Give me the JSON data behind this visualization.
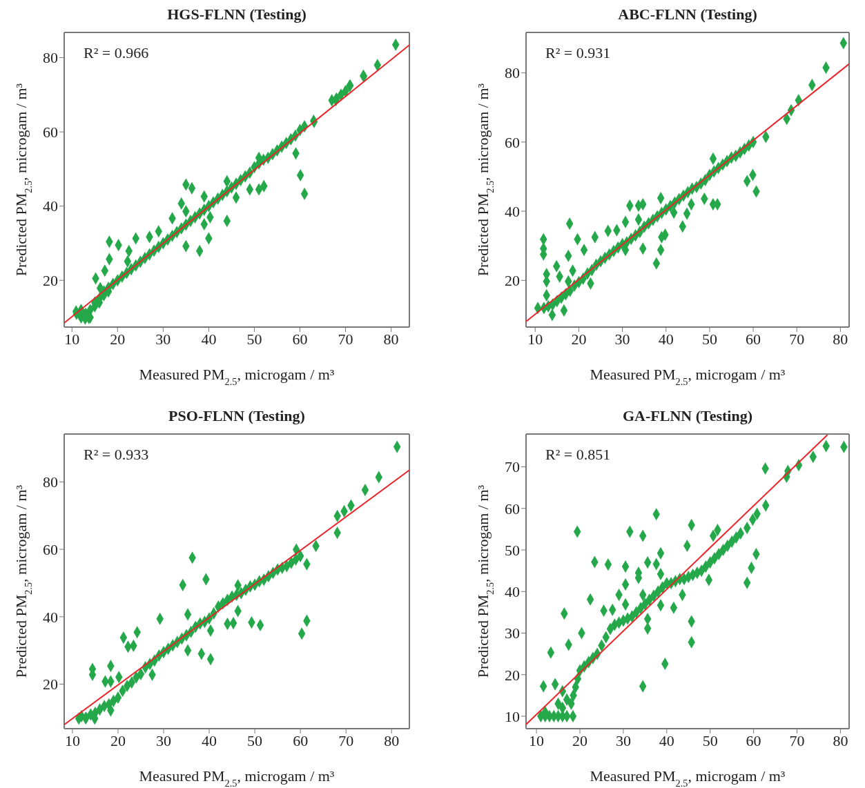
{
  "chart_data": [
    {
      "type": "scatter",
      "title": "HGS-FLNN (Testing)",
      "xlabel": "Measured PM$_{2.5}$, microgam / m³",
      "ylabel": "Predicted PM$_{2.5}$, microgam / m³",
      "annotations": [
        "R² = 0.966"
      ],
      "xlim": [
        8.3,
        84
      ],
      "ylim": [
        7.4,
        86.8
      ],
      "xticks": [
        10,
        20,
        30,
        40,
        50,
        60,
        70,
        80
      ],
      "yticks": [
        20,
        40,
        60,
        80
      ],
      "series": [
        {
          "marker": "diamond",
          "color": "#24a84a",
          "x": [
            11,
            12,
            12,
            14,
            13,
            14,
            15,
            15,
            16,
            16,
            17,
            17,
            18,
            18,
            19,
            20,
            21,
            22,
            23,
            24,
            25,
            26,
            27,
            28,
            29,
            30,
            31,
            32,
            33,
            34,
            35,
            36,
            37,
            38,
            39,
            40,
            41,
            42,
            43,
            44,
            45,
            46,
            47,
            48,
            49,
            50,
            51,
            52,
            53,
            54,
            55,
            56,
            57,
            58,
            59,
            60,
            61,
            63,
            67,
            68,
            69,
            70,
            71,
            74,
            77,
            81,
            18.2,
            18.2,
            15.2,
            17.2,
            16.2,
            20.2,
            22.5,
            24,
            22.2,
            27,
            29,
            32,
            35,
            36.3,
            34,
            35,
            39,
            35,
            38,
            40,
            39,
            40.3,
            44,
            46,
            49,
            51,
            52.1,
            59.1,
            60.1,
            61,
            63.1,
            73.9,
            70.9,
            67.9,
            51,
            44,
            10.9,
            12.9,
            13.7
          ],
          "values": [
            11,
            12,
            10,
            10,
            11,
            12,
            13,
            14,
            14,
            15,
            16,
            17,
            18,
            17,
            19,
            20,
            21,
            22,
            23,
            24,
            25,
            26,
            27,
            28,
            29,
            30,
            31,
            32,
            33,
            34,
            35,
            36,
            37,
            38,
            39,
            40,
            41,
            42,
            43,
            44,
            45,
            46,
            47,
            48,
            49,
            50.5,
            51.5,
            52.5,
            53,
            54,
            55,
            56,
            57,
            58,
            59,
            60.5,
            61.5,
            63,
            68.5,
            69,
            70,
            71,
            72.5,
            75,
            78,
            83.5,
            30.4,
            25.7,
            20.5,
            22.6,
            17.9,
            29.5,
            27.9,
            31.3,
            25.1,
            31.7,
            33.2,
            36.7,
            45.8,
            44.8,
            40.7,
            38.6,
            42.6,
            29.2,
            27.9,
            31.3,
            35.1,
            37,
            36,
            42.3,
            44.5,
            44.5,
            45.4,
            54.2,
            48.3,
            43.3,
            62.7,
            75.1,
            72.4,
            68.6,
            53,
            46.7,
            11.6,
            9.7,
            9.9
          ]
        },
        {
          "type": "line",
          "marker": "none",
          "color": "#e8262b",
          "x": [
            8.3,
            84
          ],
          "values": [
            8.5,
            83.4
          ]
        }
      ]
    },
    {
      "type": "scatter",
      "title": "ABC-FLNN (Testing)",
      "xlabel": "Measured PM$_{2.5}$, microgam / m³",
      "ylabel": "Predicted PM$_{2.5}$, microgam / m³",
      "annotations": [
        "R² = 0.931"
      ],
      "xlim": [
        7.9,
        82
      ],
      "ylim": [
        6.5,
        91.7
      ],
      "xticks": [
        10,
        20,
        30,
        40,
        50,
        60,
        70,
        80
      ],
      "yticks": [
        20,
        40,
        60,
        80
      ],
      "series": [
        {
          "marker": "diamond",
          "color": "#24a84a",
          "x": [
            12,
            13,
            14,
            15,
            16,
            17,
            18,
            19,
            20,
            21,
            22,
            23,
            24,
            25,
            26,
            27,
            28,
            29,
            30,
            31,
            32,
            33,
            34,
            35,
            36,
            37,
            38,
            39,
            40,
            41,
            42,
            43,
            44,
            45,
            46,
            47,
            48,
            49,
            50,
            51,
            52,
            53,
            54,
            55,
            56,
            57,
            58,
            59,
            60,
            11.9,
            11.9,
            11.9,
            17.9,
            19.7,
            17.6,
            14.9,
            12.6,
            12.6,
            15.6,
            18.6,
            17.6,
            12.6,
            13.9,
            16.6,
            10.6,
            21.2,
            23.7,
            22.7,
            26.7,
            28.7,
            30.7,
            31.7,
            33.7,
            34.7,
            38.8,
            33.7,
            34.7,
            30.7,
            37.8,
            38.8,
            39,
            39.8,
            43.8,
            44.8,
            41.8,
            45.8,
            48.8,
            50.8,
            51.8,
            50.8,
            58.6,
            59.9,
            60.7,
            62.9,
            67.7,
            68.7,
            70.4,
            73.5,
            76.7,
            80.7
          ],
          "values": [
            12,
            12.5,
            13,
            14,
            15,
            16,
            17,
            18.5,
            19.5,
            20.5,
            22,
            23,
            24.5,
            25.5,
            26.5,
            27.5,
            28.5,
            29.5,
            30.5,
            31,
            32,
            33,
            34,
            35.5,
            36.5,
            37.5,
            38.5,
            39.5,
            40.5,
            41.5,
            42.5,
            43.5,
            44.5,
            45.5,
            46.5,
            47,
            48,
            49,
            50.5,
            51.5,
            52.5,
            53.5,
            54.5,
            55.5,
            56,
            57,
            58,
            59,
            60,
            31.9,
            29.2,
            27.5,
            36.4,
            31.9,
            27.1,
            24.1,
            21.8,
            19.7,
            21.1,
            22.8,
            19.7,
            15.7,
            10,
            11.3,
            12,
            28.8,
            32.5,
            19.1,
            34.3,
            34.5,
            36.9,
            41.6,
            41.6,
            42,
            43.8,
            37.6,
            29.2,
            28.8,
            24.9,
            28.8,
            32.5,
            33.2,
            35.6,
            39.3,
            39.6,
            42,
            43.6,
            42,
            42,
            55.2,
            48.7,
            50.5,
            45.7,
            61.5,
            66.7,
            69.2,
            72.1,
            76.5,
            81.5,
            88.6
          ]
        },
        {
          "type": "line",
          "marker": "none",
          "color": "#e8262b",
          "x": [
            7.9,
            82
          ],
          "values": [
            8.1,
            82.6
          ]
        }
      ]
    },
    {
      "type": "scatter",
      "title": "PSO-FLNN (Testing)",
      "xlabel": "Measured PM$_{2.5}$, microgam / m³",
      "ylabel": "Predicted PM$_{2.5}$, microgam / m³",
      "annotations": [
        "R² = 0.933"
      ],
      "xlim": [
        8.2,
        83.9
      ],
      "ylim": [
        6.8,
        94.2
      ],
      "xticks": [
        10,
        20,
        30,
        40,
        50,
        60,
        70,
        80
      ],
      "yticks": [
        20,
        40,
        60,
        80
      ],
      "series": [
        {
          "marker": "diamond",
          "color": "#24a84a",
          "x": [
            12,
            13,
            14,
            15,
            16,
            17,
            18,
            19,
            20,
            21,
            22,
            23,
            24,
            25,
            26,
            27,
            28,
            29,
            30,
            31,
            32,
            33,
            34,
            35,
            36,
            37,
            38,
            39,
            40,
            41,
            42,
            43,
            44,
            45,
            46,
            47,
            48,
            49,
            50,
            51,
            52,
            53,
            54,
            55,
            56,
            57,
            58,
            59,
            60,
            14.4,
            14.4,
            18.4,
            17.2,
            18.4,
            21.2,
            22.2,
            23.4,
            24.2,
            20.2,
            27.5,
            29.2,
            34.2,
            36.3,
            39.3,
            35.3,
            38.3,
            40.3,
            40.3,
            44,
            45.3,
            46.3,
            49.3,
            51.2,
            60.3,
            61.4,
            61.4,
            59.1,
            63.4,
            68.1,
            68.1,
            69.6,
            71.1,
            74.2,
            77.2,
            81.2,
            35.3,
            46.3,
            11.4,
            12.9,
            14.9,
            18.4
          ],
          "values": [
            10.5,
            10,
            11,
            11.5,
            12.5,
            13.5,
            14,
            15,
            16,
            18,
            19.5,
            20.5,
            22,
            23,
            25,
            26,
            27,
            28.5,
            29.5,
            30.5,
            31.5,
            32.5,
            33.5,
            34.5,
            35.5,
            37,
            38,
            38.5,
            39.5,
            41,
            43,
            44,
            45,
            46,
            46.5,
            47,
            48,
            49,
            49.5,
            50.5,
            51,
            52,
            53,
            54,
            54.5,
            55,
            56,
            57,
            58,
            24.5,
            22.8,
            25.4,
            20.8,
            20.8,
            33.8,
            31.1,
            31.4,
            35.4,
            22.1,
            22.8,
            39.4,
            49.4,
            57.5,
            51.1,
            30,
            29,
            27.4,
            35.9,
            37.9,
            38.1,
            41.7,
            38.3,
            37.5,
            35,
            38.8,
            55.6,
            59.9,
            61,
            64.9,
            69.9,
            71.3,
            73,
            77.6,
            81.4,
            90.4,
            40.7,
            49.3,
            9.8,
            9.9,
            9.8,
            12.2
          ]
        },
        {
          "type": "line",
          "marker": "none",
          "color": "#e8262b",
          "x": [
            8.2,
            83.9
          ],
          "values": [
            8,
            83.5
          ]
        }
      ]
    },
    {
      "type": "scatter",
      "title": "GA-FLNN (Testing)",
      "xlabel": "Measured PM$_{2.5}$, microgam / m³",
      "ylabel": "Predicted PM$_{2.5}$, microgam / m³",
      "annotations": [
        "R² = 0.851"
      ],
      "xlim": [
        7.6,
        82
      ],
      "ylim": [
        7,
        77.9
      ],
      "xticks": [
        10,
        20,
        30,
        40,
        50,
        60,
        70,
        80
      ],
      "yticks": [
        10,
        20,
        30,
        40,
        50,
        60,
        70
      ],
      "series": [
        {
          "marker": "diamond",
          "color": "#24a84a",
          "x": [
            11,
            12,
            13,
            14,
            15,
            16,
            17,
            18.4,
            18,
            18.5,
            19,
            19.5,
            20,
            21,
            22,
            23,
            24,
            25,
            26,
            27,
            28,
            29,
            30,
            31,
            32,
            33,
            34,
            35,
            36,
            37,
            38,
            39,
            40,
            41,
            42,
            43,
            44,
            45,
            46,
            47,
            48,
            49,
            50,
            51,
            52,
            53,
            54,
            55,
            56,
            57,
            12,
            15,
            16,
            17,
            16,
            11.6,
            14.3,
            13.3,
            16.4,
            19.4,
            17.4,
            20.4,
            22.4,
            23.4,
            26.5,
            25.5,
            27.5,
            30.5,
            31.5,
            34.5,
            37.6,
            30.5,
            29,
            30.5,
            33.5,
            33.5,
            35.6,
            37.6,
            38.6,
            38.6,
            34.5,
            38.6,
            35.6,
            35.6,
            39.6,
            34.5,
            41.6,
            43.6,
            44.7,
            45.7,
            45.7,
            45.7,
            49.7,
            50.7,
            51.7,
            58.5,
            59.5,
            60.6,
            58.5,
            59.8,
            60.8,
            62.8,
            62.7,
            67.6,
            67.9,
            70.4,
            73.7,
            76.7,
            80.8
          ],
          "values": [
            10,
            10,
            10,
            10,
            10,
            10,
            10,
            10,
            13,
            15,
            17,
            19,
            21,
            22,
            23,
            24,
            25,
            27,
            29,
            31,
            32,
            32.5,
            33,
            33.5,
            34,
            35,
            36,
            37,
            38,
            39,
            40,
            41,
            42,
            42,
            42.5,
            43,
            43,
            43.5,
            44,
            44.5,
            45,
            46,
            47,
            48,
            49,
            50,
            51,
            52,
            53,
            54,
            11,
            13,
            12,
            14,
            16,
            17.2,
            17.7,
            25.3,
            34.7,
            54.4,
            27.2,
            30,
            38.1,
            47.1,
            46.5,
            35.4,
            35.6,
            46,
            54.4,
            53.4,
            58.6,
            41.7,
            39.2,
            36.9,
            44.5,
            43.3,
            47,
            46.6,
            49.2,
            44.2,
            39.2,
            36.7,
            31.1,
            33.4,
            22.6,
            17.2,
            36.1,
            39.2,
            51,
            56,
            32.8,
            27.8,
            42.8,
            53.4,
            54.8,
            42.1,
            45.7,
            49,
            55.3,
            57.3,
            58.7,
            60.7,
            69.6,
            67.6,
            69,
            70.4,
            72.4,
            75,
            74.8
          ]
        },
        {
          "type": "line",
          "marker": "none",
          "color": "#e8262b",
          "x": [
            7.6,
            77
          ],
          "values": [
            8,
            77.7
          ]
        }
      ]
    }
  ]
}
